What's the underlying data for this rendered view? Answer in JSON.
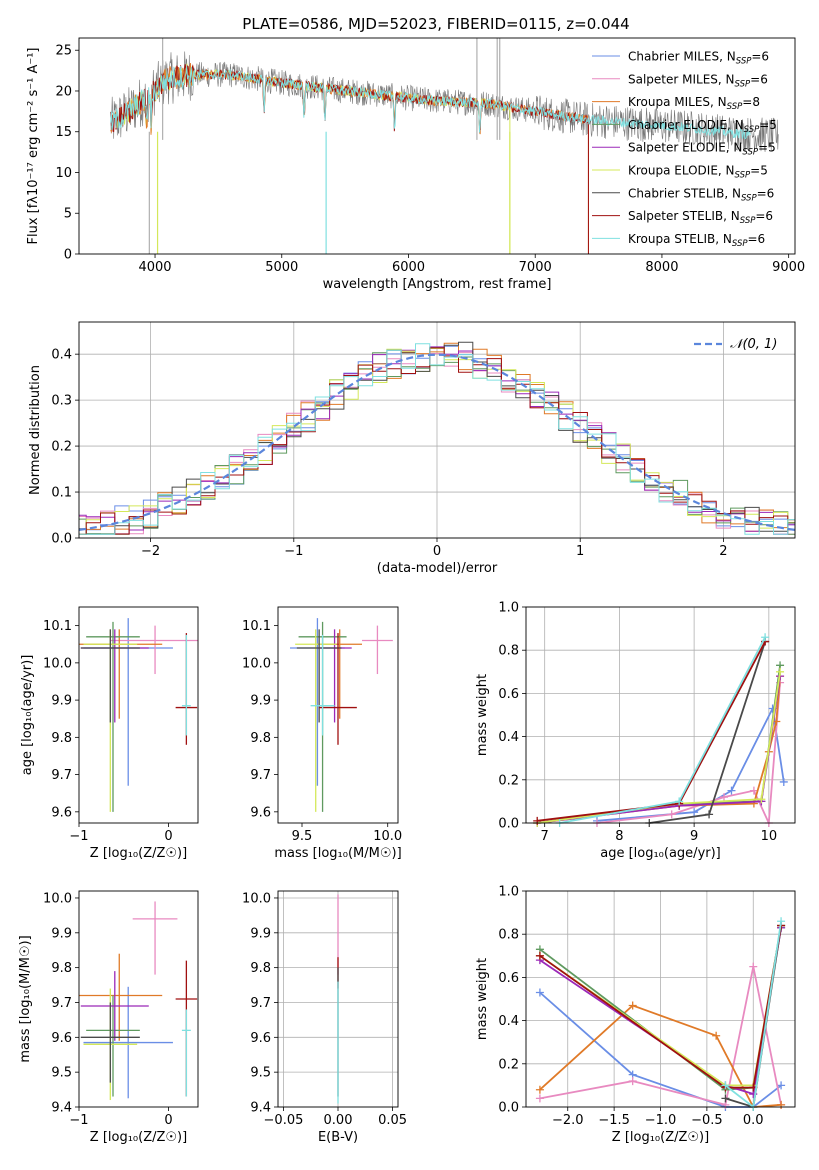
{
  "figure_title": "PLATE=0586, MJD=52023, FIBERID=0115, z=0.044",
  "colors": {
    "blue": "#6a8ee6",
    "pink": "#e88ac0",
    "orange": "#e07a28",
    "green": "#5f9a5f",
    "purple": "#9b28b8",
    "yellow": "#d4e85a",
    "dark": "#4a4a4a",
    "red": "#a01010",
    "cyan": "#7fe0e0",
    "gray": "#b0b0b0",
    "gauss": "#5b86dc"
  },
  "chart_data": [
    {
      "id": "spectrum",
      "type": "line",
      "title": "PLATE=0586, MJD=52023, FIBERID=0115, z=0.044",
      "xlabel": "wavelength [Angstrom, rest frame]",
      "ylabel": "Flux [fλ10⁻¹⁷ erg cm⁻² s⁻¹ A⁻¹]",
      "xlim": [
        3400,
        9050
      ],
      "ylim": [
        0,
        26.5
      ],
      "xticks": [
        "4000",
        "5000",
        "6000",
        "7000",
        "8000",
        "9000"
      ],
      "yticks": [
        "0",
        "5",
        "10",
        "15",
        "20",
        "25"
      ],
      "grid": false,
      "legend_position": "top-right",
      "legend": [
        {
          "label": "Chabrier MILES, N",
          "sub": "SSP",
          "suffix": "=6",
          "color": "blue"
        },
        {
          "label": "Salpeter MILES, N",
          "sub": "SSP",
          "suffix": "=6",
          "color": "pink"
        },
        {
          "label": "Kroupa MILES, N",
          "sub": "SSP",
          "suffix": "=8",
          "color": "orange"
        },
        {
          "label": "Chabrier ELODIE, N",
          "sub": "SSP",
          "suffix": "=5",
          "color": "green"
        },
        {
          "label": "Salpeter ELODIE, N",
          "sub": "SSP",
          "suffix": "=5",
          "color": "purple"
        },
        {
          "label": "Kroupa ELODIE, N",
          "sub": "SSP",
          "suffix": "=5",
          "color": "yellow"
        },
        {
          "label": "Chabrier STELIB, N",
          "sub": "SSP",
          "suffix": "=6",
          "color": "dark"
        },
        {
          "label": "Salpeter STELIB, N",
          "sub": "SSP",
          "suffix": "=6",
          "color": "red"
        },
        {
          "label": "Kroupa STELIB, N",
          "sub": "SSP",
          "suffix": "=6",
          "color": "cyan"
        }
      ],
      "continuum": {
        "x": [
          3650,
          3800,
          3950,
          4100,
          4300,
          4600,
          5000,
          5400,
          5800,
          6200,
          6600,
          7000,
          7400,
          7800,
          8200,
          8600,
          8900
        ],
        "y": [
          16.0,
          17.5,
          19.5,
          21.5,
          22.0,
          22.0,
          21.0,
          20.2,
          19.5,
          18.8,
          18.5,
          17.5,
          16.5,
          16.0,
          15.5,
          14.8,
          14.5
        ]
      },
      "model_segments": [
        {
          "color": "yellow",
          "x_start": 3700,
          "x_end": 6800,
          "note_low": 3900
        },
        {
          "color": "orange",
          "x_start": 3650,
          "x_end": 7420
        },
        {
          "color": "red",
          "x_start": 3650,
          "x_end": 7420
        },
        {
          "color": "cyan",
          "x_start": 3650,
          "x_end": 8700
        }
      ],
      "absorption_lines": [
        3934,
        3969,
        4861,
        5176,
        5340,
        5890,
        6563
      ]
    },
    {
      "id": "residuals",
      "type": "bar",
      "xlabel": "(data-model)/error",
      "ylabel": "Normed distribution",
      "xlim": [
        -2.5,
        2.5
      ],
      "ylim": [
        0,
        0.47
      ],
      "xticks": [
        "−2",
        "−1",
        "0",
        "1",
        "2"
      ],
      "yticks": [
        "0.0",
        "0.1",
        "0.2",
        "0.3",
        "0.4"
      ],
      "grid": true,
      "legend_position": "top-right",
      "legend": [
        {
          "label": "𝒩(0, 1)",
          "color": "gauss",
          "style": "dashed"
        }
      ],
      "bin_width": 0.1,
      "series_colors": [
        "blue",
        "pink",
        "orange",
        "green",
        "purple",
        "yellow",
        "dark",
        "red",
        "cyan"
      ]
    },
    {
      "id": "age-vs-Z",
      "type": "scatter",
      "xlabel": "Z [log₁₀(Z/Z☉)]",
      "ylabel": "age  [log₁₀(age/yr)]",
      "xlim": [
        -1.0,
        0.33
      ],
      "ylim": [
        9.57,
        10.15
      ],
      "xticks": [
        "−1",
        "0"
      ],
      "yticks": [
        "9.6",
        "9.7",
        "9.8",
        "9.9",
        "10.0",
        "10.1"
      ],
      "grid": false,
      "points": [
        {
          "color": "blue",
          "x": -0.45,
          "y": 10.04,
          "xerr": 0.5,
          "yerr": [
            0.37,
            0.08
          ]
        },
        {
          "color": "pink",
          "x": -0.15,
          "y": 10.06,
          "xerr": 0.5,
          "yerr": [
            0.09,
            0.04
          ]
        },
        {
          "color": "orange",
          "x": -0.55,
          "y": 10.05,
          "xerr": 0.48,
          "yerr": [
            0.2,
            0.04
          ]
        },
        {
          "color": "green",
          "x": -0.62,
          "y": 10.07,
          "xerr": 0.3,
          "yerr": [
            0.47,
            0.04
          ]
        },
        {
          "color": "purple",
          "x": -0.6,
          "y": 10.04,
          "xerr": 0.38,
          "yerr": [
            0.2,
            0.05
          ]
        },
        {
          "color": "yellow",
          "x": -0.65,
          "y": 10.05,
          "xerr": 0.3,
          "yerr": [
            0.45,
            0.04
          ]
        },
        {
          "color": "dark",
          "x": -0.65,
          "y": 10.04,
          "xerr": 0.33,
          "yerr": [
            0.2,
            0.05
          ]
        },
        {
          "color": "red",
          "x": 0.2,
          "y": 9.88,
          "xerr": 0.12,
          "yerr": [
            0.1,
            0.2
          ]
        },
        {
          "color": "cyan",
          "x": 0.2,
          "y": 9.885,
          "xerr": 0.05,
          "yerr": [
            0.08,
            0.19
          ]
        }
      ]
    },
    {
      "id": "age-vs-mass",
      "type": "scatter",
      "xlabel": "mass [log₁₀(M/M☉)]",
      "ylabel": "",
      "xlim": [
        9.36,
        10.06
      ],
      "ylim": [
        9.57,
        10.15
      ],
      "xticks": [
        "9.5",
        "10.0"
      ],
      "yticks": [
        "9.6",
        "9.7",
        "9.8",
        "9.9",
        "10.0",
        "10.1"
      ],
      "grid": false,
      "points": [
        {
          "color": "blue",
          "x": 9.59,
          "y": 10.04,
          "xerr": 0.16,
          "yerr": [
            0.37,
            0.08
          ]
        },
        {
          "color": "pink",
          "x": 9.94,
          "y": 10.06,
          "xerr": 0.09,
          "yerr": [
            0.09,
            0.04
          ]
        },
        {
          "color": "orange",
          "x": 9.72,
          "y": 10.05,
          "xerr": 0.13,
          "yerr": [
            0.2,
            0.04
          ]
        },
        {
          "color": "green",
          "x": 9.62,
          "y": 10.07,
          "xerr": 0.14,
          "yerr": [
            0.47,
            0.04
          ]
        },
        {
          "color": "purple",
          "x": 9.69,
          "y": 10.04,
          "xerr": 0.1,
          "yerr": [
            0.2,
            0.05
          ]
        },
        {
          "color": "yellow",
          "x": 9.58,
          "y": 10.05,
          "xerr": 0.12,
          "yerr": [
            0.45,
            0.04
          ]
        },
        {
          "color": "dark",
          "x": 9.6,
          "y": 10.04,
          "xerr": 0.13,
          "yerr": [
            0.2,
            0.05
          ]
        },
        {
          "color": "red",
          "x": 9.71,
          "y": 9.88,
          "xerr": 0.11,
          "yerr": [
            0.1,
            0.2
          ]
        },
        {
          "color": "cyan",
          "x": 9.62,
          "y": 9.885,
          "xerr": 0.07,
          "yerr": [
            0.08,
            0.19
          ]
        }
      ]
    },
    {
      "id": "massweight-vs-age",
      "type": "line",
      "xlabel": "age  [log₁₀(age/yr)]",
      "ylabel": "mass weight",
      "xlim": [
        6.75,
        10.35
      ],
      "ylim": [
        0,
        1.0
      ],
      "xticks": [
        "7",
        "8",
        "9",
        "10"
      ],
      "yticks": [
        "0.0",
        "0.2",
        "0.4",
        "0.6",
        "0.8",
        "1.0"
      ],
      "grid": true,
      "series": [
        {
          "color": "blue",
          "x": [
            7.7,
            9.0,
            9.5,
            10.05,
            10.2
          ],
          "y": [
            0.01,
            0.05,
            0.15,
            0.53,
            0.19
          ]
        },
        {
          "color": "pink",
          "x": [
            7.7,
            8.7,
            9.4,
            9.8,
            10.0,
            10.15
          ],
          "y": [
            0.0,
            0.04,
            0.12,
            0.15,
            0.0,
            0.65
          ]
        },
        {
          "color": "orange",
          "x": [
            6.9,
            8.8,
            9.8,
            10.0,
            10.1,
            10.15
          ],
          "y": [
            0.0,
            0.08,
            0.09,
            0.33,
            0.47,
            0.68
          ]
        },
        {
          "color": "green",
          "x": [
            6.9,
            8.8,
            9.9,
            10.15
          ],
          "y": [
            0.0,
            0.09,
            0.1,
            0.73
          ]
        },
        {
          "color": "purple",
          "x": [
            6.9,
            8.8,
            9.9,
            10.15
          ],
          "y": [
            0.0,
            0.08,
            0.1,
            0.68
          ]
        },
        {
          "color": "yellow",
          "x": [
            6.9,
            8.8,
            9.9,
            10.15
          ],
          "y": [
            0.0,
            0.09,
            0.11,
            0.7
          ]
        },
        {
          "color": "dark",
          "x": [
            8.4,
            9.2,
            9.95
          ],
          "y": [
            0.0,
            0.04,
            0.84
          ]
        },
        {
          "color": "red",
          "x": [
            6.9,
            8.8,
            9.95
          ],
          "y": [
            0.01,
            0.09,
            0.84
          ]
        },
        {
          "color": "cyan",
          "x": [
            7.2,
            8.8,
            9.95
          ],
          "y": [
            0.0,
            0.1,
            0.86
          ]
        }
      ]
    },
    {
      "id": "mass-vs-Z",
      "type": "scatter",
      "xlabel": "Z [log₁₀(Z/Z☉)]",
      "ylabel": "mass [log₁₀(M/M☉)]",
      "xlim": [
        -1.0,
        0.33
      ],
      "ylim": [
        9.4,
        10.02
      ],
      "xticks": [
        "−1",
        "0"
      ],
      "yticks": [
        "9.4",
        "9.5",
        "9.6",
        "9.7",
        "9.8",
        "9.9",
        "10.0"
      ],
      "grid": false,
      "points": [
        {
          "color": "blue",
          "x": -0.45,
          "y": 9.585,
          "xerr": 0.5,
          "yerr": [
            0.16,
            0.16
          ]
        },
        {
          "color": "pink",
          "x": -0.15,
          "y": 9.94,
          "xerr": 0.25,
          "yerr": [
            0.16,
            0.05
          ]
        },
        {
          "color": "orange",
          "x": -0.55,
          "y": 9.72,
          "xerr": 0.48,
          "yerr": [
            0.13,
            0.12
          ]
        },
        {
          "color": "green",
          "x": -0.62,
          "y": 9.62,
          "xerr": 0.3,
          "yerr": [
            0.19,
            0.1
          ]
        },
        {
          "color": "purple",
          "x": -0.6,
          "y": 9.69,
          "xerr": 0.38,
          "yerr": [
            0.1,
            0.1
          ]
        },
        {
          "color": "yellow",
          "x": -0.65,
          "y": 9.58,
          "xerr": 0.3,
          "yerr": [
            0.16,
            0.16
          ]
        },
        {
          "color": "dark",
          "x": -0.65,
          "y": 9.6,
          "xerr": 0.33,
          "yerr": [
            0.13,
            0.1
          ]
        },
        {
          "color": "red",
          "x": 0.2,
          "y": 9.71,
          "xerr": 0.12,
          "yerr": [
            0.28,
            0.11
          ]
        },
        {
          "color": "cyan",
          "x": 0.2,
          "y": 9.62,
          "xerr": 0.05,
          "yerr": [
            0.19,
            0.06
          ]
        }
      ]
    },
    {
      "id": "mass-vs-EBV",
      "type": "scatter",
      "xlabel": "E(B-V)",
      "ylabel": "",
      "xlim": [
        -0.055,
        0.055
      ],
      "ylim": [
        9.4,
        10.02
      ],
      "xticks": [
        "−0.05",
        "0.00",
        "0.05"
      ],
      "yticks": [
        "9.4",
        "9.5",
        "9.6",
        "9.7",
        "9.8",
        "9.9",
        "10.0"
      ],
      "grid": true,
      "points": [
        {
          "color": "pink",
          "x": 0.0,
          "y": 9.94,
          "yerr": [
            0.16,
            0.07
          ]
        },
        {
          "color": "red",
          "x": 0.0,
          "y": 9.8,
          "yerr": [
            0.06,
            0.03
          ]
        },
        {
          "color": "dark",
          "x": 0.0,
          "y": 9.7,
          "yerr": [
            0.27,
            0.1
          ]
        },
        {
          "color": "cyan",
          "x": 0.0,
          "y": 9.6,
          "yerr": [
            0.19,
            0.16
          ]
        }
      ]
    },
    {
      "id": "massweight-vs-Z",
      "type": "line",
      "xlabel": "Z [log₁₀(Z/Z☉)]",
      "ylabel": "mass weight",
      "xlim": [
        -2.45,
        0.45
      ],
      "ylim": [
        0,
        1.0
      ],
      "xticks": [
        "−2.0",
        "−1.5",
        "−1.0",
        "−0.5",
        "0.0"
      ],
      "yticks": [
        "0.0",
        "0.2",
        "0.4",
        "0.6",
        "0.8",
        "1.0"
      ],
      "grid": true,
      "series": [
        {
          "color": "blue",
          "x": [
            -2.3,
            -1.3,
            -0.3,
            0.0,
            0.3
          ],
          "y": [
            0.53,
            0.15,
            0.0,
            0.0,
            0.1
          ]
        },
        {
          "color": "pink",
          "x": [
            -2.3,
            -1.3,
            -0.3,
            0.0,
            0.3
          ],
          "y": [
            0.04,
            0.12,
            0.01,
            0.65,
            0.01
          ]
        },
        {
          "color": "orange",
          "x": [
            -2.3,
            -1.3,
            -0.4,
            0.0,
            0.3
          ],
          "y": [
            0.08,
            0.47,
            0.33,
            0.0,
            0.01
          ]
        },
        {
          "color": "green",
          "x": [
            -2.3,
            -0.3,
            0.0,
            0.3
          ],
          "y": [
            0.73,
            0.08,
            0.09,
            0.83
          ]
        },
        {
          "color": "purple",
          "x": [
            -2.3,
            -0.3,
            0.0,
            0.3
          ],
          "y": [
            0.68,
            0.1,
            0.06,
            0.83
          ]
        },
        {
          "color": "yellow",
          "x": [
            -2.3,
            -0.3,
            0.0,
            0.3
          ],
          "y": [
            0.7,
            0.1,
            0.1,
            0.84
          ]
        },
        {
          "color": "dark",
          "x": [
            -0.3,
            0.0,
            0.3
          ],
          "y": [
            0.04,
            0.0,
            0.84
          ]
        },
        {
          "color": "red",
          "x": [
            -2.3,
            -0.3,
            0.0,
            0.3
          ],
          "y": [
            0.7,
            0.09,
            0.09,
            0.84
          ]
        },
        {
          "color": "cyan",
          "x": [
            -0.3,
            0.0,
            0.3
          ],
          "y": [
            0.1,
            0.0,
            0.86
          ]
        }
      ]
    }
  ]
}
